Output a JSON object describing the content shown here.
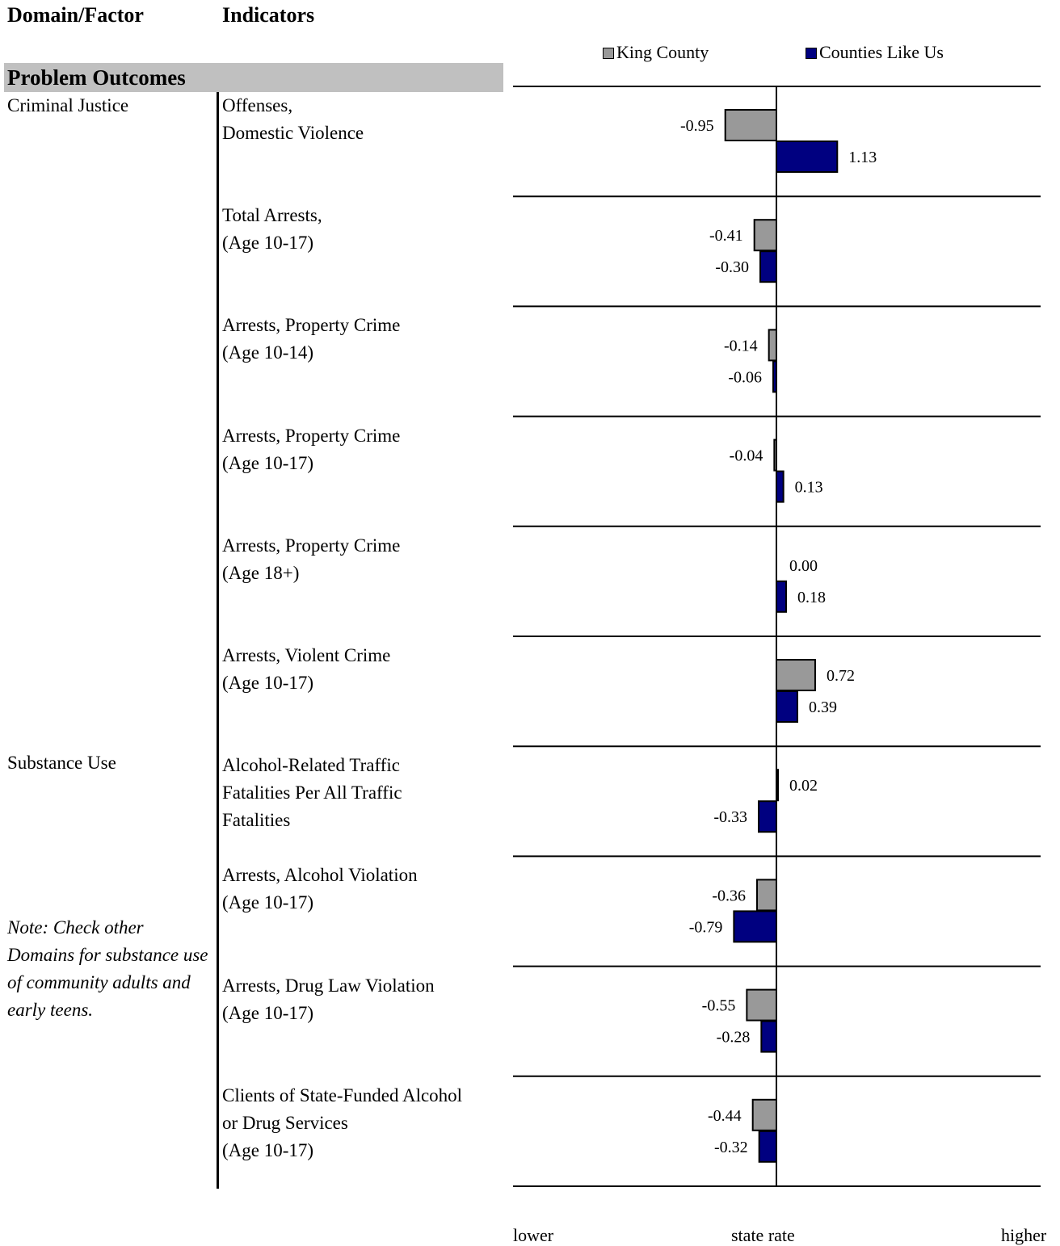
{
  "header": {
    "domain_factor": "Domain/Factor",
    "indicators": "Indicators"
  },
  "section": {
    "title": "Problem Outcomes"
  },
  "domains": [
    {
      "name": "Criminal Justice"
    },
    {
      "name": "Substance Use"
    }
  ],
  "note": "Note: Check other Domains for substance use of community adults and early teens.",
  "legend": {
    "king_county": "King County",
    "counties_like_us": "Counties Like Us"
  },
  "scale": {
    "lower": "lower",
    "state_rate": "state rate",
    "higher": "higher"
  },
  "colors": {
    "king_county": "#999999",
    "counties_like_us": "#000080"
  },
  "chart_data": {
    "type": "bar",
    "orientation": "horizontal",
    "baseline_label": "state rate",
    "xlim": [
      -4.9,
      4.9
    ],
    "categories": [
      [
        "Offenses,",
        "Domestic Violence"
      ],
      [
        "Total Arrests,",
        "(Age 10-17)"
      ],
      [
        "Arrests, Property Crime",
        "(Age 10-14)"
      ],
      [
        "Arrests, Property Crime",
        "(Age 10-17)"
      ],
      [
        "Arrests, Property Crime",
        "(Age 18+)"
      ],
      [
        "Arrests, Violent Crime",
        "(Age 10-17)"
      ],
      [
        "Alcohol-Related Traffic",
        "Fatalities Per All Traffic",
        "Fatalities"
      ],
      [
        "Arrests, Alcohol Violation",
        "(Age 10-17)"
      ],
      [
        "Arrests, Drug Law Violation",
        "(Age 10-17)"
      ],
      [
        "Clients of State-Funded Alcohol",
        "or Drug Services",
        "(Age 10-17)"
      ]
    ],
    "series": [
      {
        "name": "King County",
        "values": [
          -0.95,
          -0.41,
          -0.14,
          -0.04,
          0.0,
          0.72,
          0.02,
          -0.36,
          -0.55,
          -0.44
        ],
        "labels": [
          "-0.95",
          "-0.41",
          "-0.14",
          "-0.04",
          "0.00",
          "0.72",
          "0.02",
          "-0.36",
          "-0.55",
          "-0.44"
        ]
      },
      {
        "name": "Counties Like Us",
        "values": [
          1.13,
          -0.3,
          -0.06,
          0.13,
          0.18,
          0.39,
          -0.33,
          -0.79,
          -0.28,
          -0.32
        ],
        "labels": [
          "1.13",
          "-0.30",
          "-0.06",
          "0.13",
          "0.18",
          "0.39",
          "-0.33",
          "-0.79",
          "-0.28",
          "-0.32"
        ]
      }
    ]
  }
}
